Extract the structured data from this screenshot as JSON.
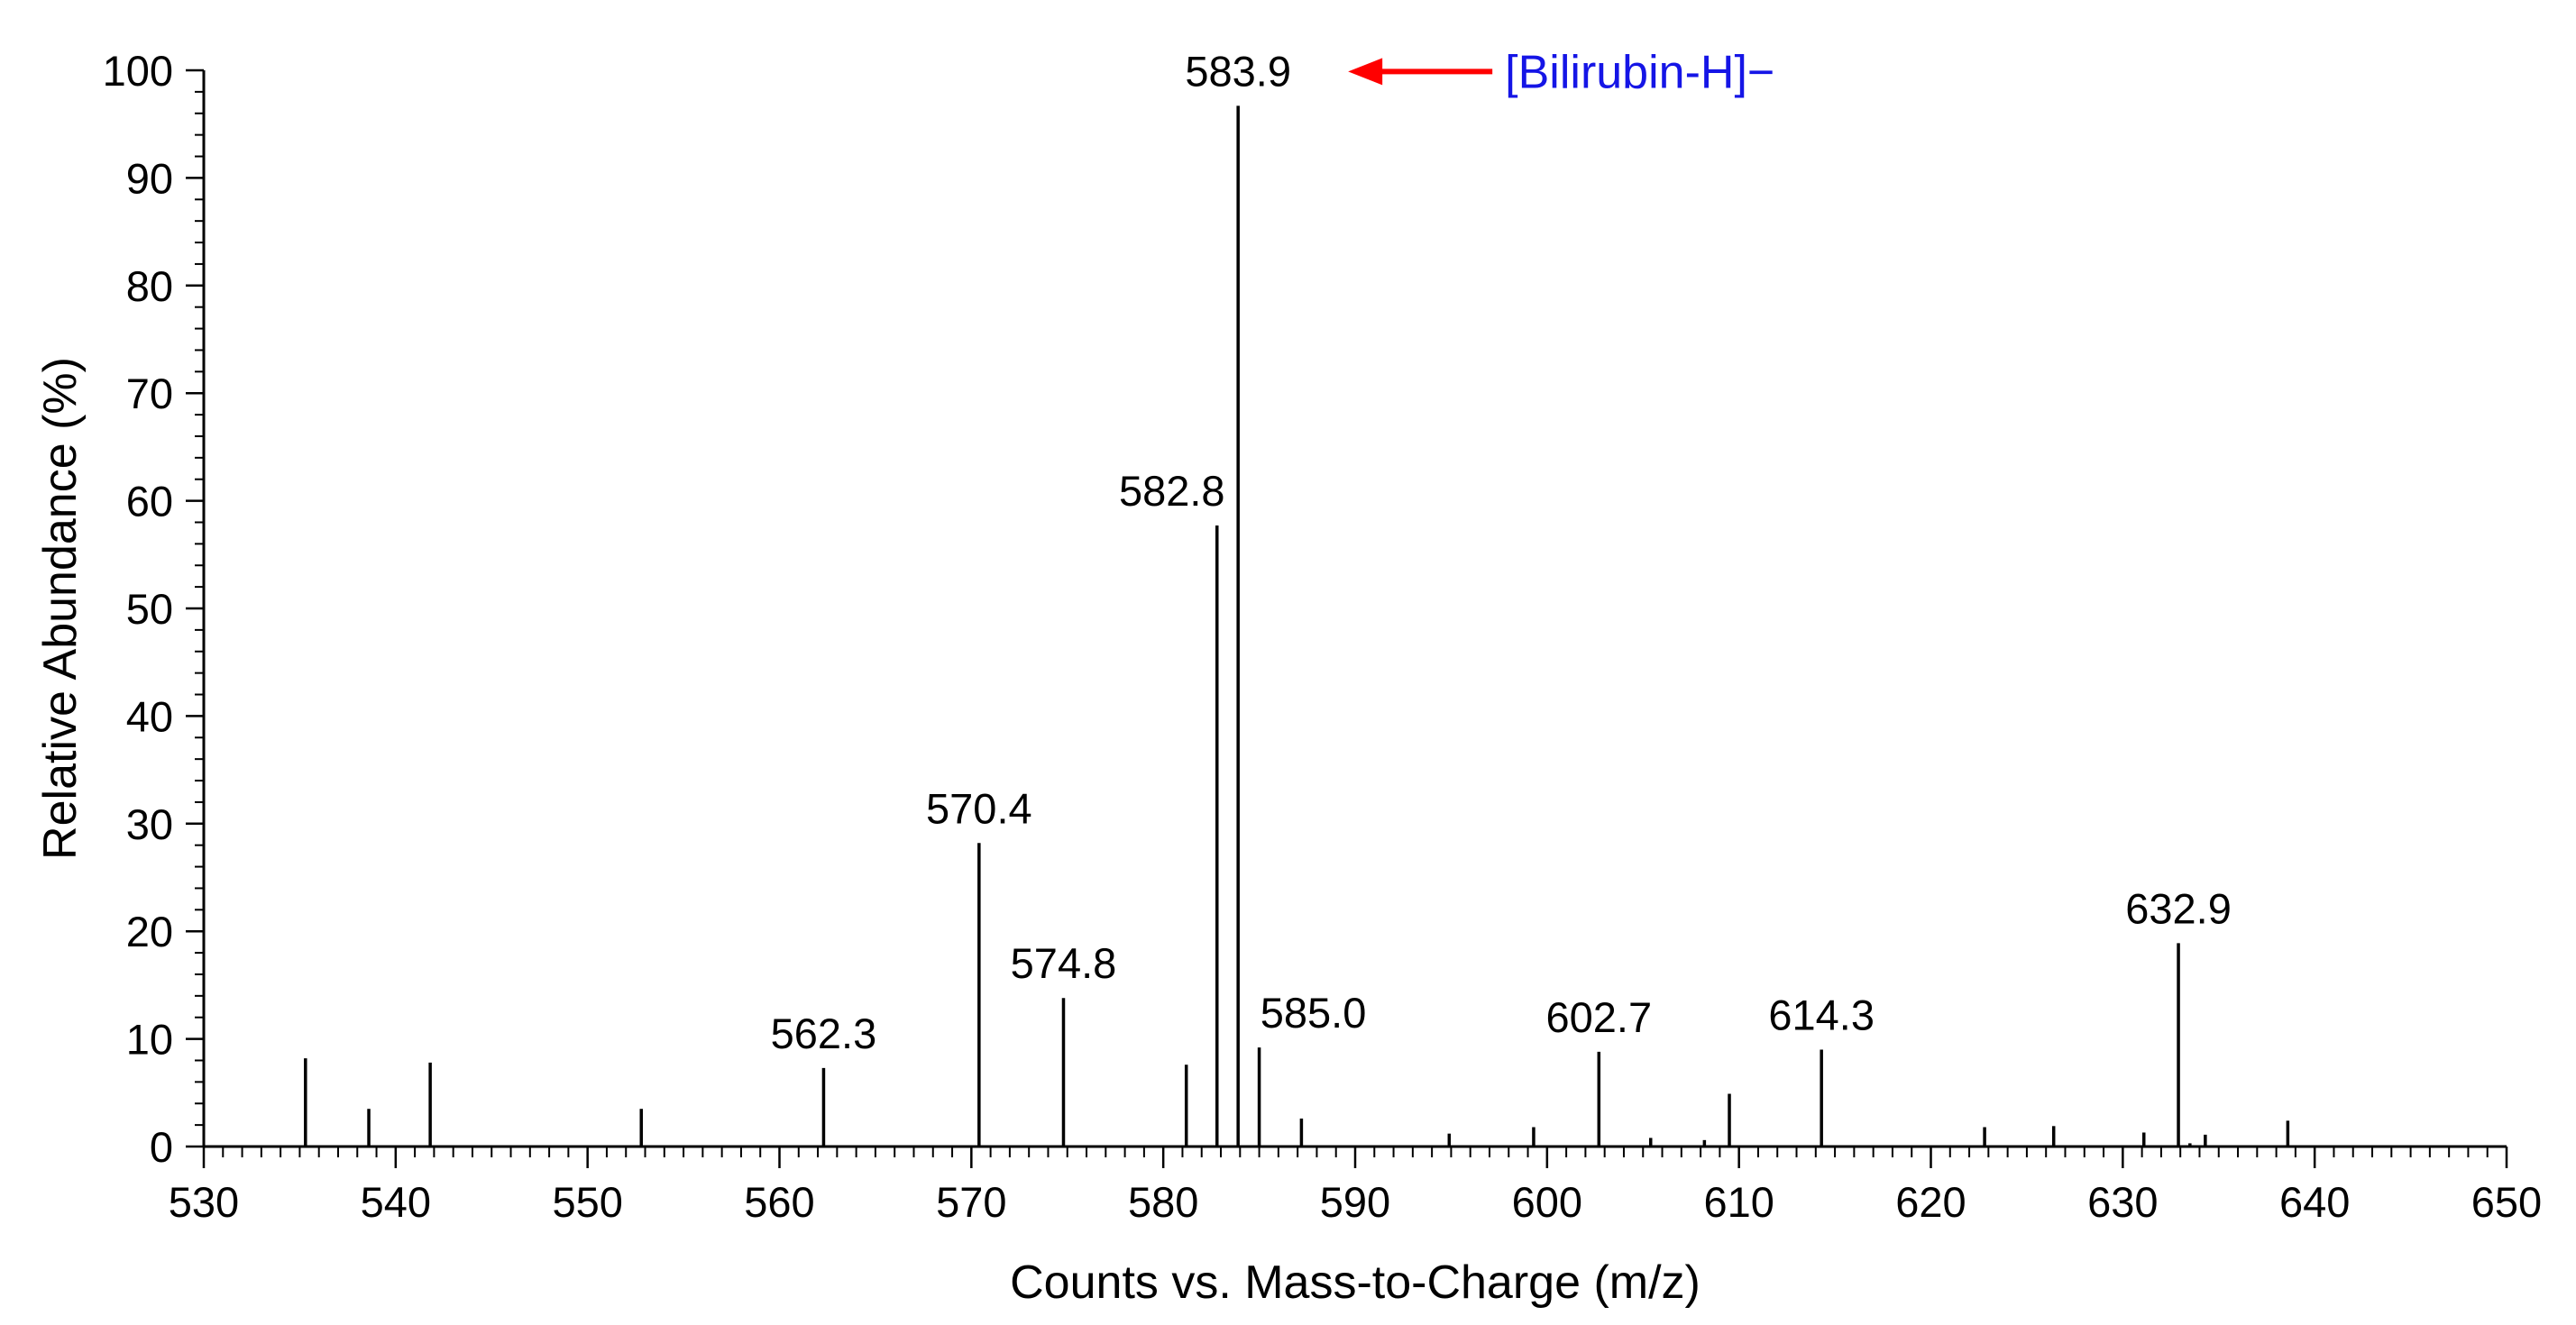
{
  "chart_data": {
    "type": "bar",
    "title": "",
    "xlabel": "Counts vs. Mass-to-Charge (m/z)",
    "ylabel": "Relative Abundance (%)",
    "xlim": [
      530,
      650
    ],
    "ylim": [
      0,
      100
    ],
    "x_ticks": [
      "530",
      "540",
      "550",
      "560",
      "570",
      "580",
      "590",
      "600",
      "610",
      "620",
      "630",
      "640",
      "650"
    ],
    "y_ticks": [
      "0",
      "10",
      "20",
      "30",
      "40",
      "50",
      "60",
      "70",
      "80",
      "90",
      "100"
    ],
    "grid": false,
    "peaks": [
      {
        "mz": 535.3,
        "abundance": 8.2
      },
      {
        "mz": 538.6,
        "abundance": 3.5
      },
      {
        "mz": 541.8,
        "abundance": 7.8
      },
      {
        "mz": 552.8,
        "abundance": 3.5
      },
      {
        "mz": 562.3,
        "abundance": 7.3,
        "label": "562.3"
      },
      {
        "mz": 570.4,
        "abundance": 28.2,
        "label": "570.4"
      },
      {
        "mz": 574.8,
        "abundance": 13.8,
        "label": "574.8"
      },
      {
        "mz": 581.2,
        "abundance": 7.6
      },
      {
        "mz": 582.8,
        "abundance": 57.7,
        "label": "582.8"
      },
      {
        "mz": 583.9,
        "abundance": 96.7,
        "label": "583.9"
      },
      {
        "mz": 585.0,
        "abundance": 9.2,
        "label": "585.0"
      },
      {
        "mz": 587.2,
        "abundance": 2.6
      },
      {
        "mz": 594.9,
        "abundance": 1.2
      },
      {
        "mz": 599.3,
        "abundance": 1.8
      },
      {
        "mz": 602.7,
        "abundance": 8.8,
        "label": "602.7"
      },
      {
        "mz": 605.4,
        "abundance": 0.8
      },
      {
        "mz": 608.2,
        "abundance": 0.6
      },
      {
        "mz": 609.5,
        "abundance": 4.9
      },
      {
        "mz": 614.3,
        "abundance": 9.0,
        "label": "614.3"
      },
      {
        "mz": 622.8,
        "abundance": 1.8
      },
      {
        "mz": 626.4,
        "abundance": 1.9
      },
      {
        "mz": 631.1,
        "abundance": 1.3
      },
      {
        "mz": 632.9,
        "abundance": 18.9,
        "label": "632.9"
      },
      {
        "mz": 633.5,
        "abundance": 0.3
      },
      {
        "mz": 634.3,
        "abundance": 1.1
      },
      {
        "mz": 638.6,
        "abundance": 2.4
      }
    ],
    "annotation": {
      "text": "[Bilirubin-H]−",
      "target": "583.9",
      "text_color": "#1515e6",
      "arrow_color": "#ff0000"
    }
  }
}
